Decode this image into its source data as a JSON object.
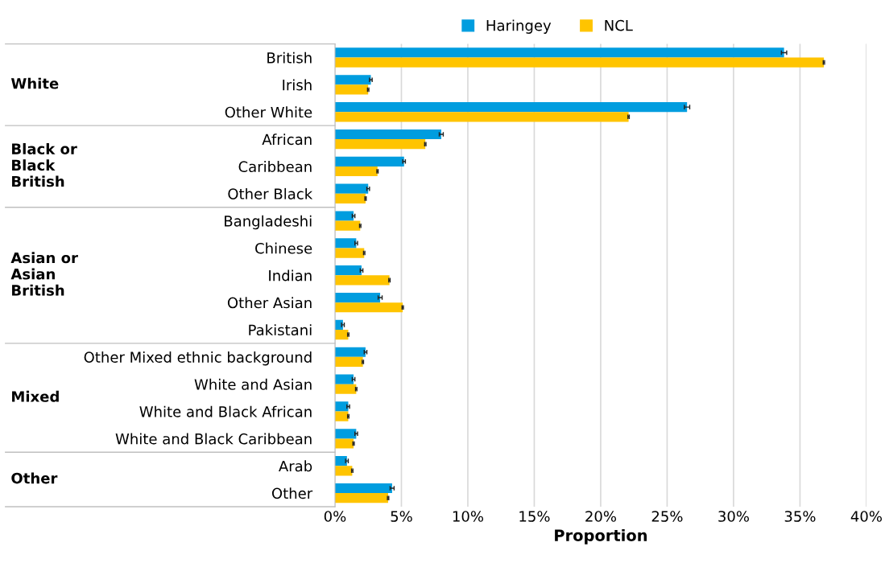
{
  "chart_data": {
    "type": "bar",
    "orientation": "horizontal",
    "xlabel": "Proportion",
    "categories": [
      "British",
      "Irish",
      "Other White",
      "African",
      "Caribbean",
      "Other Black",
      "Bangladeshi",
      "Chinese",
      "Indian",
      "Other Asian",
      "Pakistani",
      "Other Mixed ethnic background",
      "White and Asian",
      "White and Black African",
      "White and Black Caribbean",
      "Arab",
      "Other"
    ],
    "series": [
      {
        "name": "Haringey",
        "color": "#009ddf",
        "values": [
          33.8,
          2.7,
          26.5,
          8.0,
          5.2,
          2.5,
          1.4,
          1.6,
          2.0,
          3.4,
          0.6,
          2.3,
          1.4,
          1.0,
          1.6,
          0.9,
          4.3
        ],
        "errors": [
          0.2,
          0.1,
          0.2,
          0.15,
          0.1,
          0.1,
          0.1,
          0.1,
          0.1,
          0.15,
          0.1,
          0.1,
          0.1,
          0.1,
          0.1,
          0.1,
          0.15
        ]
      },
      {
        "name": "NCL",
        "color": "#ffc400",
        "values": [
          36.8,
          2.5,
          22.1,
          6.8,
          3.2,
          2.3,
          1.9,
          2.2,
          4.1,
          5.1,
          1.0,
          2.1,
          1.6,
          1.0,
          1.4,
          1.3,
          4.0
        ],
        "errors": [
          0.05,
          0.05,
          0.05,
          0.05,
          0.05,
          0.05,
          0.05,
          0.05,
          0.05,
          0.05,
          0.05,
          0.05,
          0.05,
          0.05,
          0.05,
          0.05,
          0.05
        ]
      }
    ],
    "xlim": [
      0,
      40
    ],
    "xticks": [
      {
        "value": 0,
        "label": "0%"
      },
      {
        "value": 5,
        "label": "5%"
      },
      {
        "value": 10,
        "label": "10%"
      },
      {
        "value": 15,
        "label": "15%"
      },
      {
        "value": 20,
        "label": "20%"
      },
      {
        "value": 25,
        "label": "25%"
      },
      {
        "value": 30,
        "label": "30%"
      },
      {
        "value": 35,
        "label": "35%"
      },
      {
        "value": 40,
        "label": "40%"
      }
    ],
    "grid": "x",
    "legend": "top",
    "annotations": [
      "White",
      "Black or\nBlack\nBritish",
      "Asian or\nAsian\nBritish",
      "Mixed",
      "Other"
    ]
  }
}
